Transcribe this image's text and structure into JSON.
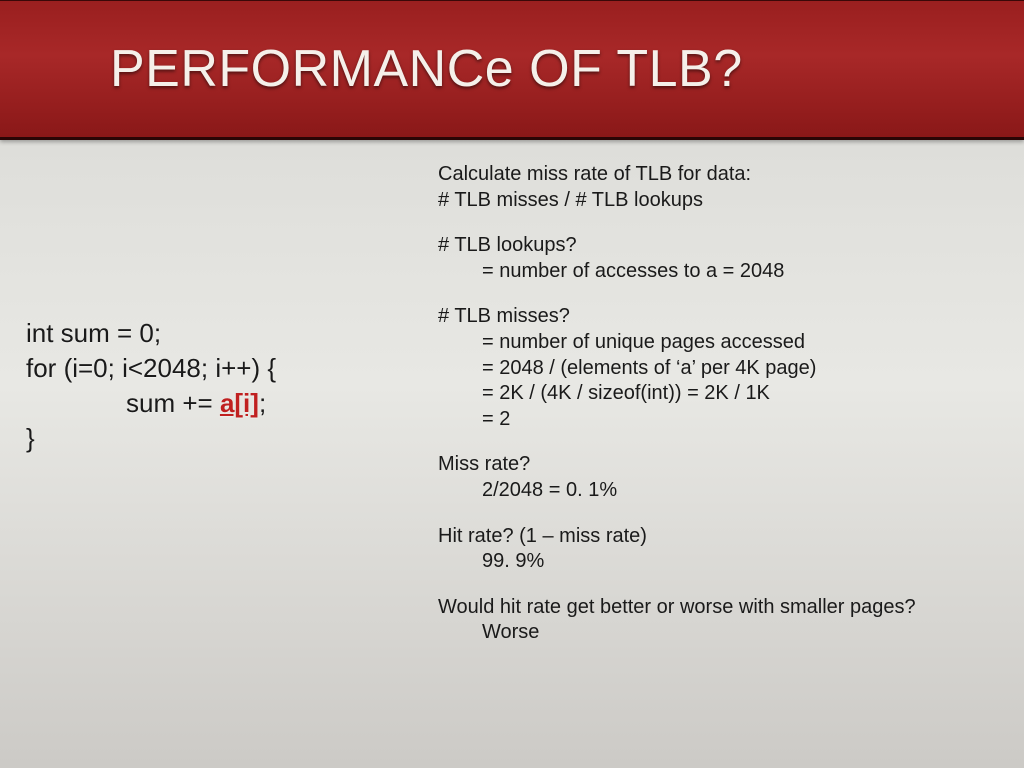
{
  "header": {
    "title": "PERFORMANCe OF TLB?"
  },
  "code": {
    "line1": "int sum = 0;",
    "line2": "for (i=0; i<2048; i++) {",
    "line3_pre": "sum += ",
    "line3_hl": "a[i]",
    "line3_post": ";",
    "line4": "}"
  },
  "right": {
    "b1l1": "Calculate miss rate of TLB for data:",
    "b1l2": "# TLB misses / # TLB lookups",
    "b2l1": "# TLB lookups?",
    "b2l2": "= number of accesses to a = 2048",
    "b3l1": "# TLB misses?",
    "b3l2": "= number of unique pages accessed",
    "b3l3": "= 2048 / (elements of ‘a’ per 4K page)",
    "b3l4": "= 2K / (4K / sizeof(int)) = 2K / 1K",
    "b3l5": "= 2",
    "b4l1": "Miss rate?",
    "b4l2": "2/2048 = 0. 1%",
    "b5l1": "Hit rate? (1 – miss rate)",
    "b5l2": "99. 9%",
    "b6l1": "Would hit rate get better or worse with smaller pages?",
    "b6l2": "Worse"
  },
  "colors": {
    "header_bg": "#a82828",
    "header_border": "#2a0505",
    "title_color": "#f5f0ea",
    "body_bg": "#d8d8d4",
    "text_color": "#1a1a1a",
    "highlight": "#c02020"
  }
}
